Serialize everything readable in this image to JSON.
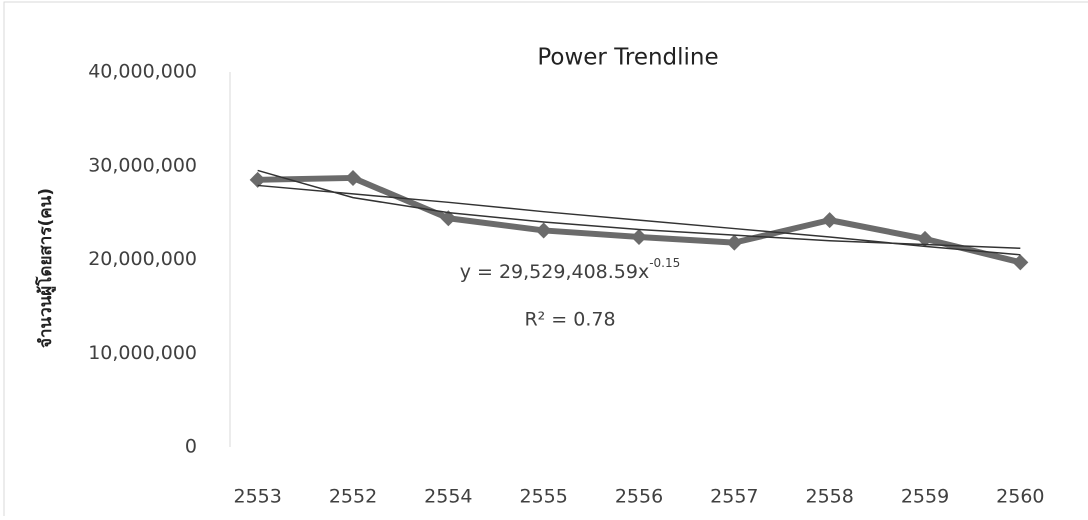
{
  "chart_data": {
    "type": "line",
    "title": "Power Trendline",
    "y_label": "จำนวนผู้โดยสาร(คน)",
    "categories": [
      "2553",
      "2552",
      "2554",
      "2555",
      "2556",
      "2557",
      "2558",
      "2559",
      "2560"
    ],
    "series": [
      {
        "color": "#6b6b6b",
        "values": [
          28500000,
          28700000,
          24400000,
          23100000,
          22400000,
          21800000,
          24200000,
          22200000,
          19700000
        ]
      }
    ],
    "trendlines": [
      {
        "color": "#333333",
        "values": [
          29500000,
          26600000,
          25000000,
          24000000,
          23200000,
          22600000,
          22000000,
          21600000,
          21200000
        ]
      },
      {
        "color": "#333333",
        "values": [
          27900000,
          27000000,
          26100000,
          25100000,
          24200000,
          23300000,
          22400000,
          21400000,
          20500000
        ]
      }
    ],
    "equation": "y = 29,529,408.59x",
    "equation_exponent": "-0.15",
    "r_squared": "R² = 0.78",
    "ylim": [
      0,
      40000000
    ],
    "yticks": [
      0,
      {
        "value": 10000000,
        "label": "10,000,000"
      },
      {
        "value": 20000000,
        "label": "20,000,000"
      },
      {
        "value": 30000000,
        "label": "30,000,000"
      },
      {
        "value": 40000000,
        "label": "40,000,000"
      }
    ],
    "grid": false
  }
}
